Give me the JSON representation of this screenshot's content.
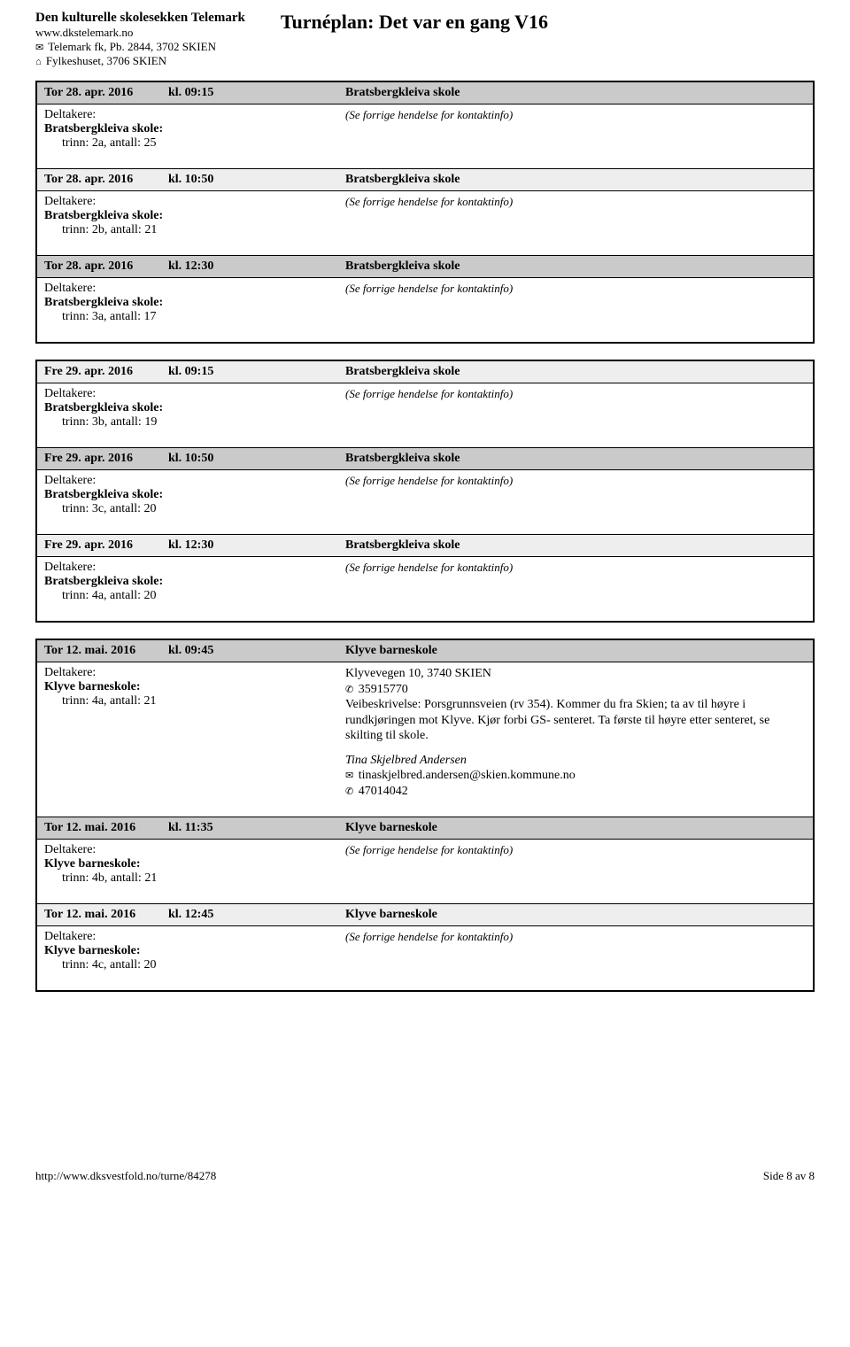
{
  "header": {
    "org": "Den kulturelle skolesekken Telemark",
    "url": "www.dkstelemark.no",
    "post": "Telemark fk, Pb. 2844, 3702 SKIEN",
    "addr": "Fylkeshuset, 3706 SKIEN",
    "title": "Turnéplan: Det var en gang V16"
  },
  "groups": [
    {
      "rows": [
        {
          "date": "Tor 28. apr. 2016",
          "time": "kl. 09:15",
          "loc": "Bratsbergkleiva skole",
          "school": "Bratsbergkleiva skole:",
          "trinn": "trinn: 2a, antall: 25",
          "forrige": true,
          "head_bg": "dark"
        },
        {
          "date": "Tor 28. apr. 2016",
          "time": "kl. 10:50",
          "loc": "Bratsbergkleiva skole",
          "school": "Bratsbergkleiva skole:",
          "trinn": "trinn: 2b, antall: 21",
          "forrige": true,
          "head_bg": "light"
        },
        {
          "date": "Tor 28. apr. 2016",
          "time": "kl. 12:30",
          "loc": "Bratsbergkleiva skole",
          "school": "Bratsbergkleiva skole:",
          "trinn": "trinn: 3a, antall: 17",
          "forrige": true,
          "head_bg": "dark"
        }
      ]
    },
    {
      "rows": [
        {
          "date": "Fre 29. apr. 2016",
          "time": "kl. 09:15",
          "loc": "Bratsbergkleiva skole",
          "school": "Bratsbergkleiva skole:",
          "trinn": "trinn: 3b, antall: 19",
          "forrige": true,
          "head_bg": "light"
        },
        {
          "date": "Fre 29. apr. 2016",
          "time": "kl. 10:50",
          "loc": "Bratsbergkleiva skole",
          "school": "Bratsbergkleiva skole:",
          "trinn": "trinn: 3c, antall: 20",
          "forrige": true,
          "head_bg": "dark"
        },
        {
          "date": "Fre 29. apr. 2016",
          "time": "kl. 12:30",
          "loc": "Bratsbergkleiva skole",
          "school": "Bratsbergkleiva skole:",
          "trinn": "trinn: 4a, antall: 20",
          "forrige": true,
          "head_bg": "light"
        }
      ]
    },
    {
      "rows": [
        {
          "date": "Tor 12. mai. 2016",
          "time": "kl. 09:45",
          "loc": "Klyve barneskole",
          "school": "Klyve barneskole:",
          "trinn": "trinn: 4a, antall: 21",
          "head_bg": "dark",
          "right": {
            "addr": "Klyvevegen 10, 3740 SKIEN",
            "phone": "35915770",
            "desc": "Veibeskrivelse: Porsgrunnsveien (rv 354). Kommer du fra Skien; ta av til høyre i rundkjøringen mot Klyve. Kjør forbi GS- senteret. Ta første til høyre etter senteret, se skilting til skole.",
            "contact_name": "Tina Skjelbred Andersen",
            "email": "tinaskjelbred.andersen@skien.kommune.no",
            "cphone": "47014042"
          }
        },
        {
          "date": "Tor 12. mai. 2016",
          "time": "kl. 11:35",
          "loc": "Klyve barneskole",
          "school": "Klyve barneskole:",
          "trinn": "trinn: 4b, antall: 21",
          "forrige": true,
          "head_bg": "dark"
        },
        {
          "date": "Tor 12. mai. 2016",
          "time": "kl. 12:45",
          "loc": "Klyve barneskole",
          "school": "Klyve barneskole:",
          "trinn": "trinn: 4c, antall: 20",
          "forrige": true,
          "head_bg": "light"
        }
      ]
    }
  ],
  "labels": {
    "deltakere": "Deltakere:",
    "forrige": "(Se forrige hendelse for kontaktinfo)"
  },
  "footer": {
    "url": "http://www.dksvestfold.no/turne/84278",
    "page": "Side 8 av 8"
  },
  "icons": {
    "mail": "✉",
    "home": "⌂",
    "phone": "✆"
  }
}
